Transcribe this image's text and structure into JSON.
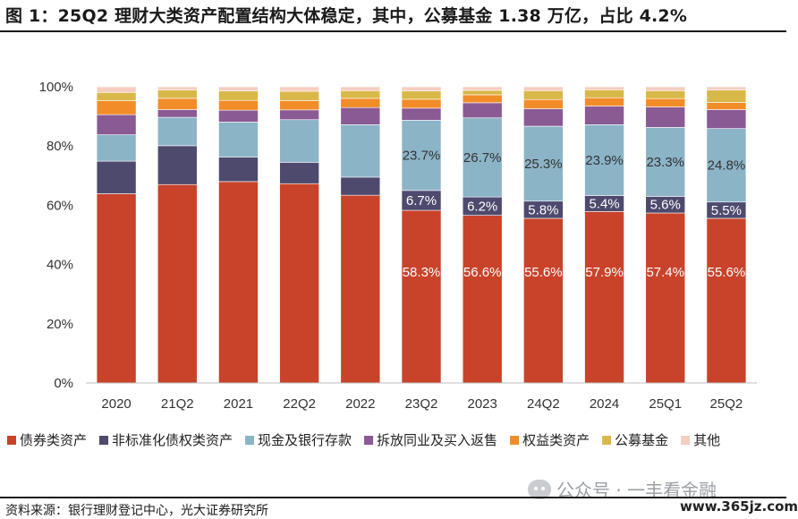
{
  "title": "图 1：25Q2 理财大类资产配置结构大体稳定，其中，公募基金 1.38 万亿，占比 4.2%",
  "source": "资料来源：银行理财登记中心，光大证券研究所",
  "watermark": "公众号 · 一丰看金融",
  "site": "www.365jz.com",
  "chart_data": {
    "type": "bar",
    "stacked": true,
    "percent": true,
    "categories": [
      "2020",
      "21Q2",
      "2021",
      "22Q2",
      "2022",
      "23Q2",
      "2023",
      "24Q2",
      "2024",
      "25Q1",
      "25Q2"
    ],
    "ylim": [
      0,
      100
    ],
    "yticks": [
      "0%",
      "20%",
      "40%",
      "60%",
      "80%",
      "100%"
    ],
    "legend_position": "bottom",
    "series": [
      {
        "name": "债券类资产",
        "color": "#c8432a",
        "values": [
          63.9,
          67.0,
          68.0,
          67.3,
          63.4,
          58.3,
          56.6,
          55.6,
          57.9,
          57.4,
          55.6
        ],
        "labels": [
          "",
          "",
          "",
          "",
          "",
          "58.3%",
          "56.6%",
          "55.6%",
          "57.9%",
          "57.4%",
          "55.6%"
        ]
      },
      {
        "name": "非标准化债权类资产",
        "color": "#4e4a6e",
        "values": [
          11.0,
          13.1,
          8.3,
          7.2,
          6.1,
          6.7,
          6.2,
          5.8,
          5.4,
          5.6,
          5.5
        ],
        "labels": [
          "",
          "",
          "",
          "",
          "",
          "6.7%",
          "6.2%",
          "5.8%",
          "5.4%",
          "5.6%",
          "5.5%"
        ]
      },
      {
        "name": "现金及银行存款",
        "color": "#8cb4c7",
        "values": [
          8.9,
          9.6,
          11.8,
          14.4,
          17.7,
          23.7,
          26.7,
          25.3,
          23.9,
          23.3,
          24.8
        ],
        "labels": [
          "",
          "",
          "",
          "",
          "",
          "23.7%",
          "26.7%",
          "25.3%",
          "23.9%",
          "23.3%",
          "24.8%"
        ]
      },
      {
        "name": "拆放同业及买入返售",
        "color": "#8a5a94",
        "values": [
          6.8,
          2.6,
          4.0,
          3.3,
          5.8,
          4.1,
          5.1,
          5.9,
          6.3,
          6.9,
          6.4
        ],
        "labels": [
          "",
          "",
          "",
          "",
          "",
          "",
          "",
          "",
          "",
          "",
          ""
        ]
      },
      {
        "name": "权益类资产",
        "color": "#f28c28",
        "values": [
          4.7,
          3.8,
          3.3,
          3.1,
          3.1,
          3.0,
          2.7,
          3.1,
          2.8,
          2.8,
          2.4
        ],
        "labels": [
          "",
          "",
          "",
          "",
          "",
          "",
          "",
          "",
          "",
          "",
          ""
        ]
      },
      {
        "name": "公募基金",
        "color": "#d9b84a",
        "values": [
          2.8,
          2.8,
          3.2,
          3.2,
          2.6,
          2.8,
          1.5,
          3.0,
          2.7,
          2.7,
          4.2
        ],
        "labels": [
          "",
          "",
          "",
          "",
          "",
          "",
          "",
          "",
          "",
          "",
          ""
        ]
      },
      {
        "name": "其他",
        "color": "#f6cdc0",
        "values": [
          1.9,
          1.1,
          1.4,
          1.5,
          1.3,
          1.4,
          1.2,
          1.3,
          1.0,
          1.3,
          1.1
        ],
        "labels": [
          "",
          "",
          "",
          "",
          "",
          "",
          "",
          "",
          "",
          "",
          ""
        ]
      }
    ]
  }
}
